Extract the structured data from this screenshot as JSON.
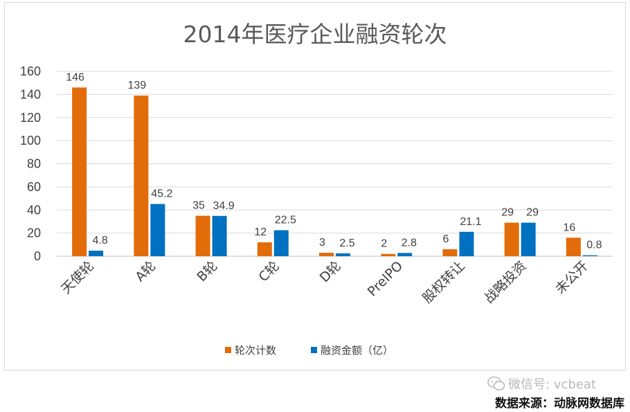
{
  "chart_data": {
    "type": "bar",
    "title": "2014年医疗企业融资轮次",
    "categories": [
      "天使轮",
      "A轮",
      "B轮",
      "C轮",
      "D轮",
      "PreIPO",
      "股权转让",
      "战略投资",
      "未公开"
    ],
    "series": [
      {
        "name": "轮次计数",
        "values": [
          146,
          139,
          35,
          12,
          3,
          2,
          6,
          29,
          16
        ],
        "labels": [
          "146",
          "139",
          "35",
          "12",
          "3",
          "2",
          "6",
          "29",
          "16"
        ]
      },
      {
        "name": "融资金额（亿）",
        "values": [
          4.8,
          45.2,
          34.9,
          22.5,
          2.5,
          2.8,
          21.1,
          29,
          0.8
        ],
        "labels": [
          "4.8",
          "45.2",
          "34.9",
          "22.5",
          "2.5",
          "2.8",
          "21.1",
          "29",
          "0.8"
        ]
      }
    ],
    "ylim": [
      0,
      160
    ],
    "yticks": [
      "0",
      "20",
      "40",
      "60",
      "80",
      "100",
      "120",
      "140",
      "160"
    ],
    "grid": true,
    "legend_position": "bottom",
    "colors": [
      "#e36c0a",
      "#0070c0"
    ]
  },
  "watermark": {
    "text": "微信号: vcbeat",
    "icon": "wechat-icon"
  },
  "source": "数据来源：动脉网数据库"
}
